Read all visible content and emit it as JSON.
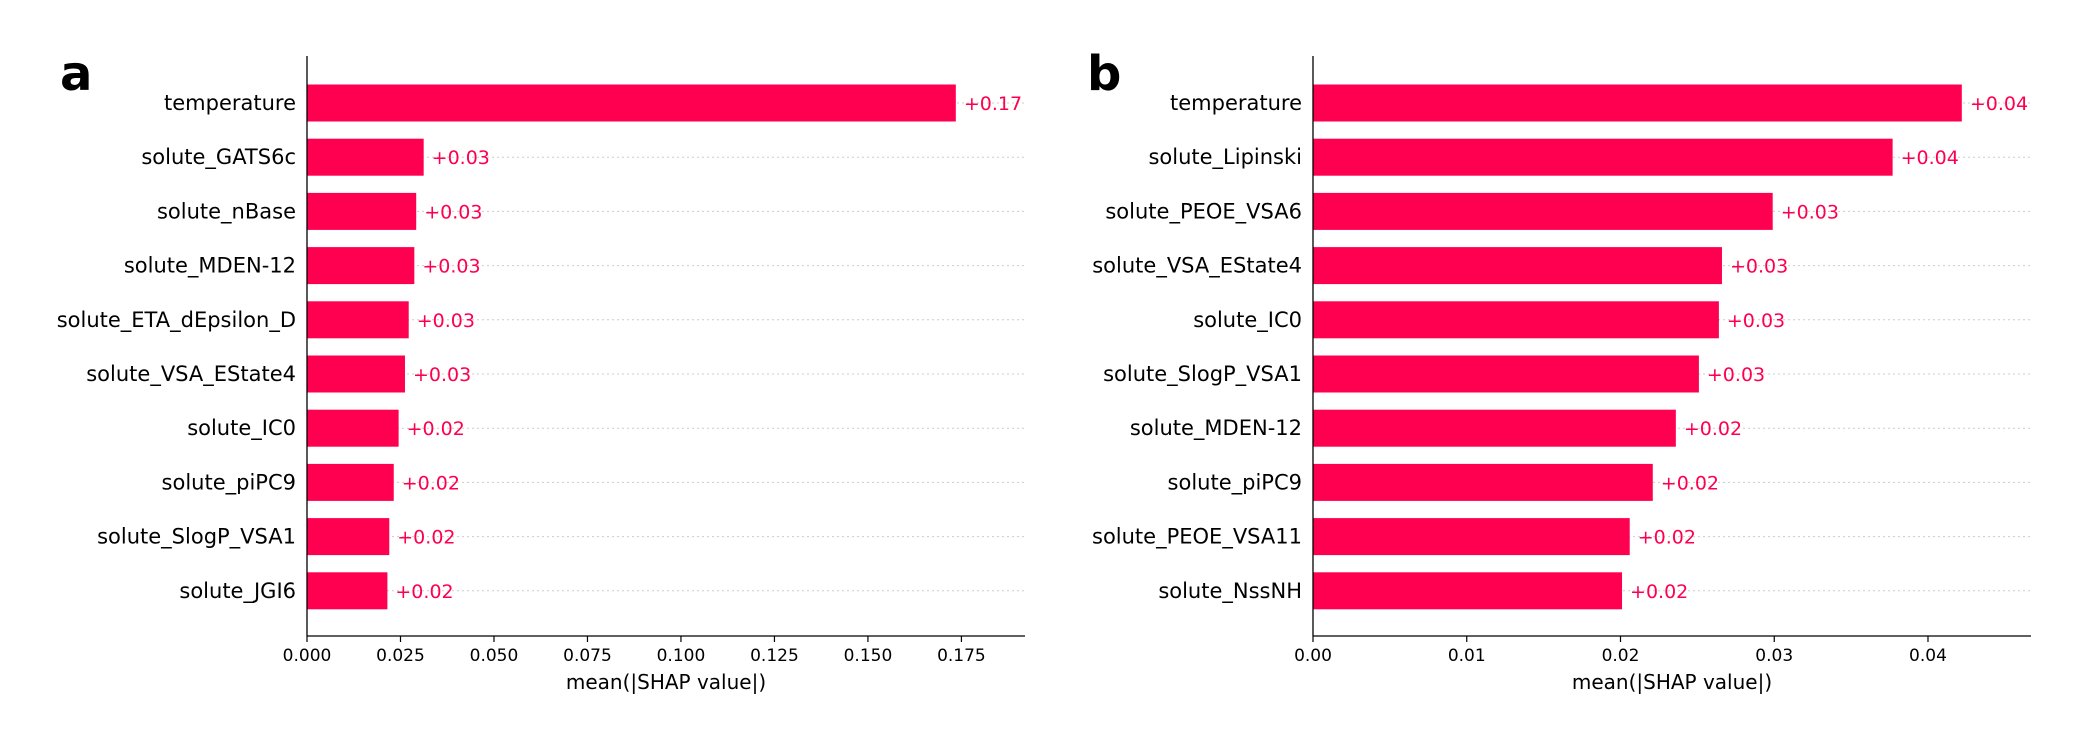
{
  "colors": {
    "bar": "#ff0051",
    "label": "#ff0051",
    "axis": "#000000",
    "grid": "#cccccc"
  },
  "chart_data": [
    {
      "type": "bar",
      "orientation": "horizontal",
      "panel": "a",
      "categories": [
        "temperature",
        "solute_GATS6c",
        "solute_nBase",
        "solute_MDEN-12",
        "solute_ETA_dEpsilon_D",
        "solute_VSA_EState4",
        "solute_IC0",
        "solute_piPC9",
        "solute_SlogP_VSA1",
        "solute_JGI6"
      ],
      "values": [
        0.1735,
        0.0312,
        0.0292,
        0.0287,
        0.0272,
        0.0262,
        0.0245,
        0.0232,
        0.022,
        0.0215
      ],
      "data_labels": [
        "+0.17",
        "+0.03",
        "+0.03",
        "+0.03",
        "+0.03",
        "+0.03",
        "+0.02",
        "+0.02",
        "+0.02",
        "+0.02"
      ],
      "xlabel": "mean(|SHAP value|)",
      "ylabel": "",
      "xlim": [
        0,
        0.192
      ],
      "xticks": [
        0,
        0.025,
        0.05,
        0.075,
        0.1,
        0.125,
        0.15,
        0.175
      ],
      "xtick_labels": [
        "0.000",
        "0.025",
        "0.050",
        "0.075",
        "0.100",
        "0.125",
        "0.150",
        "0.175"
      ],
      "grid": "dotted horizontal row lines"
    },
    {
      "type": "bar",
      "orientation": "horizontal",
      "panel": "b",
      "categories": [
        "temperature",
        "solute_Lipinski",
        "solute_PEOE_VSA6",
        "solute_VSA_EState4",
        "solute_IC0",
        "solute_SlogP_VSA1",
        "solute_MDEN-12",
        "solute_piPC9",
        "solute_PEOE_VSA11",
        "solute_NssNH"
      ],
      "values": [
        0.0422,
        0.0377,
        0.0299,
        0.0266,
        0.0264,
        0.0251,
        0.0236,
        0.0221,
        0.0206,
        0.0201
      ],
      "data_labels": [
        "+0.04",
        "+0.04",
        "+0.03",
        "+0.03",
        "+0.03",
        "+0.03",
        "+0.02",
        "+0.02",
        "+0.02",
        "+0.02"
      ],
      "xlabel": "mean(|SHAP value|)",
      "ylabel": "",
      "xlim": [
        0,
        0.0467
      ],
      "xticks": [
        0,
        0.01,
        0.02,
        0.03,
        0.04
      ],
      "xtick_labels": [
        "0.00",
        "0.01",
        "0.02",
        "0.03",
        "0.04"
      ],
      "grid": "dotted horizontal row lines"
    }
  ]
}
